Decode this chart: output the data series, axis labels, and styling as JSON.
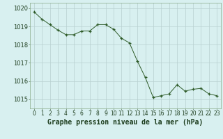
{
  "x": [
    0,
    1,
    2,
    3,
    4,
    5,
    6,
    7,
    8,
    9,
    10,
    11,
    12,
    13,
    14,
    15,
    16,
    17,
    18,
    19,
    20,
    21,
    22,
    23
  ],
  "y": [
    1019.8,
    1019.4,
    1019.1,
    1018.8,
    1018.55,
    1018.55,
    1018.75,
    1018.75,
    1019.1,
    1019.1,
    1018.85,
    1018.35,
    1018.1,
    1017.1,
    1016.2,
    1015.1,
    1015.2,
    1015.3,
    1015.8,
    1015.45,
    1015.55,
    1015.6,
    1015.3,
    1015.2
  ],
  "line_color": "#2d5a27",
  "marker_color": "#2d5a27",
  "bg_color": "#d8f0f0",
  "grid_color": "#b8d0d0",
  "xlabel": "Graphe pression niveau de la mer (hPa)",
  "xlabel_fontsize": 7.0,
  "ylim": [
    1014.5,
    1020.3
  ],
  "yticks": [
    1015,
    1016,
    1017,
    1018,
    1019,
    1020
  ],
  "xticks": [
    0,
    1,
    2,
    3,
    4,
    5,
    6,
    7,
    8,
    9,
    10,
    11,
    12,
    13,
    14,
    15,
    16,
    17,
    18,
    19,
    20,
    21,
    22,
    23
  ],
  "xtick_labels": [
    "0",
    "1",
    "2",
    "3",
    "4",
    "5",
    "6",
    "7",
    "8",
    "9",
    "10",
    "11",
    "12",
    "13",
    "14",
    "15",
    "16",
    "17",
    "18",
    "19",
    "20",
    "21",
    "22",
    "23"
  ],
  "tick_fontsize": 5.5,
  "ytick_fontsize": 6.0
}
